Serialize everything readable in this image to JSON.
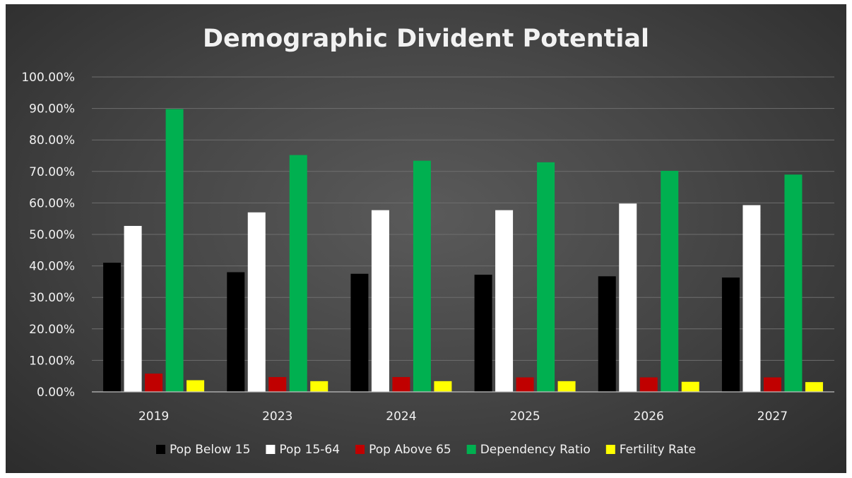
{
  "chart_data": {
    "type": "bar",
    "title": "Demographic Divident Potential",
    "categories": [
      "2019",
      "2023",
      "2024",
      "2025",
      "2026",
      "2027"
    ],
    "series": [
      {
        "name": "Pop Below 15",
        "color": "#000000",
        "values": [
          0.41,
          0.38,
          0.375,
          0.372,
          0.367,
          0.363
        ]
      },
      {
        "name": "Pop 15-64",
        "color": "#ffffff",
        "values": [
          0.527,
          0.57,
          0.577,
          0.577,
          0.598,
          0.593
        ]
      },
      {
        "name": "Pop Above 65",
        "color": "#c00000",
        "values": [
          0.058,
          0.047,
          0.047,
          0.046,
          0.046,
          0.046
        ]
      },
      {
        "name": "Dependency Ratio",
        "color": "#00b050",
        "values": [
          0.898,
          0.752,
          0.734,
          0.729,
          0.702,
          0.69
        ]
      },
      {
        "name": "Fertility Rate",
        "color": "#ffff00",
        "values": [
          0.037,
          0.034,
          0.034,
          0.034,
          0.032,
          0.031
        ]
      }
    ],
    "ylim": [
      0,
      1
    ],
    "yticks": [
      "0.00%",
      "10.00%",
      "20.00%",
      "30.00%",
      "40.00%",
      "50.00%",
      "60.00%",
      "70.00%",
      "80.00%",
      "90.00%",
      "100.00%"
    ],
    "grid": true,
    "legend_position": "bottom",
    "background": "#474747",
    "text_color": "#f2f2f2"
  }
}
